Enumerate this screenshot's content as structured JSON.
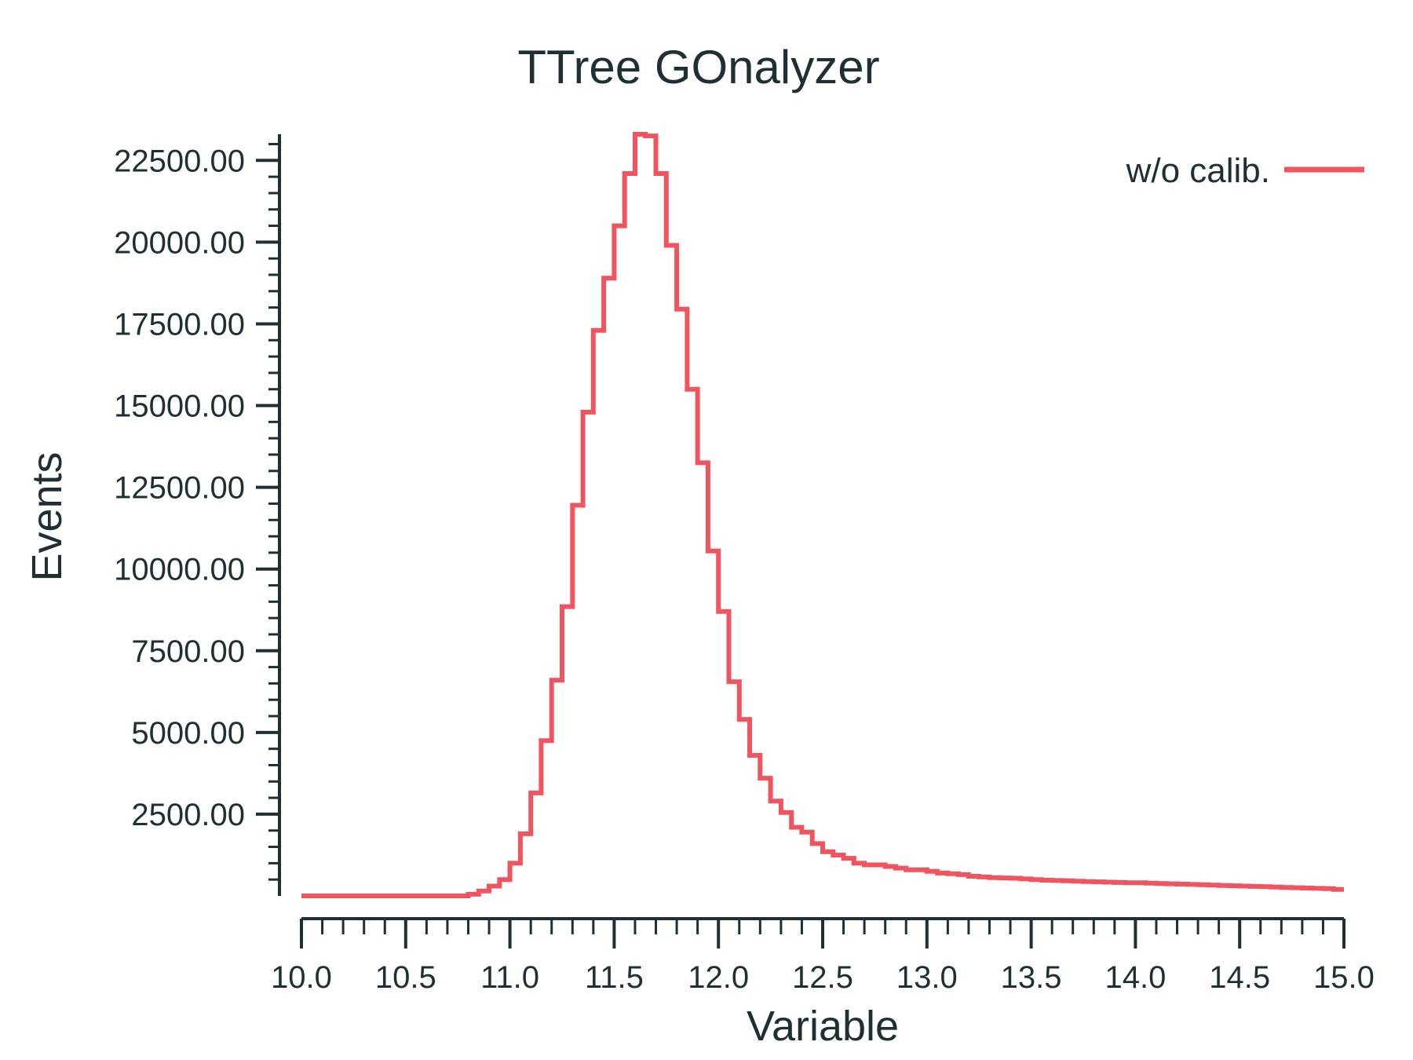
{
  "chart_data": {
    "type": "line",
    "style": "step-histogram",
    "title": "TTree GOnalyzer",
    "xlabel": "Variable",
    "ylabel": "Events",
    "xlim": [
      10.0,
      15.0
    ],
    "ylim": [
      0,
      23300
    ],
    "x_ticks": [
      "10.0",
      "10.5",
      "11.0",
      "11.5",
      "12.0",
      "12.5",
      "13.0",
      "13.5",
      "14.0",
      "14.5",
      "15.0"
    ],
    "y_ticks": [
      "2500.00",
      "5000.00",
      "7500.00",
      "10000.00",
      "12500.00",
      "15000.00",
      "17500.00",
      "20000.00",
      "22500.00"
    ],
    "legend_position": "top-right",
    "grid": false,
    "color": "#f0555f",
    "series": [
      {
        "name": "w/o calib.",
        "bin_edges": [
          10.0,
          10.05,
          10.1,
          10.15,
          10.2,
          10.25,
          10.3,
          10.35,
          10.4,
          10.45,
          10.5,
          10.55,
          10.6,
          10.65,
          10.7,
          10.75,
          10.8,
          10.85,
          10.9,
          10.95,
          11.0,
          11.05,
          11.1,
          11.15,
          11.2,
          11.25,
          11.3,
          11.35,
          11.4,
          11.45,
          11.5,
          11.55,
          11.6,
          11.65,
          11.7,
          11.75,
          11.8,
          11.85,
          11.9,
          11.95,
          12.0,
          12.05,
          12.1,
          12.15,
          12.2,
          12.25,
          12.3,
          12.35,
          12.4,
          12.45,
          12.5,
          12.55,
          12.6,
          12.65,
          12.7,
          12.75,
          12.8,
          12.85,
          12.9,
          12.95,
          13.0,
          13.05,
          13.1,
          13.15,
          13.2,
          13.25,
          13.3,
          13.35,
          13.4,
          13.45,
          13.5,
          13.55,
          13.6,
          13.65,
          13.7,
          13.75,
          13.8,
          13.85,
          13.9,
          13.95,
          14.0,
          14.05,
          14.1,
          14.15,
          14.2,
          14.25,
          14.3,
          14.35,
          14.4,
          14.45,
          14.5,
          14.55,
          14.6,
          14.65,
          14.7,
          14.75,
          14.8,
          14.85,
          14.9,
          14.95,
          15.0
        ],
        "counts": [
          0,
          0,
          0,
          0,
          0,
          0,
          0,
          0,
          0,
          0,
          0,
          0,
          0,
          0,
          0,
          0,
          50,
          150,
          300,
          500,
          1000,
          1900,
          3150,
          4750,
          6600,
          8850,
          11950,
          14800,
          17300,
          18900,
          20500,
          22100,
          23300,
          23250,
          22100,
          19900,
          17950,
          15500,
          13250,
          10550,
          8700,
          6550,
          5400,
          4300,
          3600,
          2900,
          2550,
          2100,
          1950,
          1600,
          1350,
          1250,
          1150,
          1000,
          950,
          950,
          900,
          850,
          800,
          800,
          750,
          700,
          680,
          650,
          600,
          580,
          560,
          550,
          540,
          520,
          500,
          480,
          470,
          460,
          450,
          440,
          430,
          420,
          410,
          400,
          400,
          390,
          380,
          370,
          360,
          350,
          340,
          330,
          320,
          310,
          300,
          290,
          280,
          270,
          260,
          250,
          240,
          230,
          220,
          200
        ]
      }
    ]
  }
}
